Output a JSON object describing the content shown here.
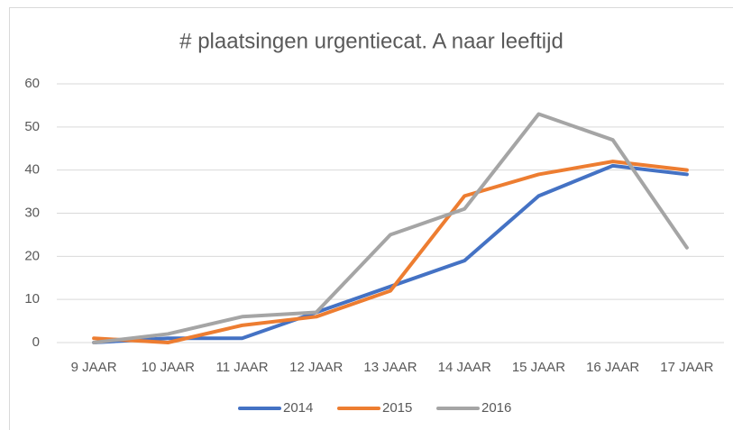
{
  "chart_data": {
    "type": "line",
    "title": "# plaatsingen urgentiecat. A naar leeftijd",
    "categories": [
      "9 JAAR",
      "10 JAAR",
      "11 JAAR",
      "12 JAAR",
      "13 JAAR",
      "14 JAAR",
      "15 JAAR",
      "16 JAAR",
      "17 JAAR"
    ],
    "series": [
      {
        "name": "2014",
        "color": "#4472c4",
        "values": [
          0,
          1,
          1,
          7,
          13,
          19,
          34,
          41,
          39
        ]
      },
      {
        "name": "2015",
        "color": "#ed7d31",
        "values": [
          1,
          0,
          4,
          6,
          12,
          34,
          39,
          42,
          40
        ]
      },
      {
        "name": "2016",
        "color": "#a5a5a5",
        "values": [
          0,
          2,
          6,
          7,
          25,
          31,
          53,
          47,
          22
        ]
      }
    ],
    "ylim": [
      0,
      60
    ],
    "yticks": [
      0,
      10,
      20,
      30,
      40,
      50,
      60
    ],
    "grid": true,
    "legend": "bottom"
  }
}
